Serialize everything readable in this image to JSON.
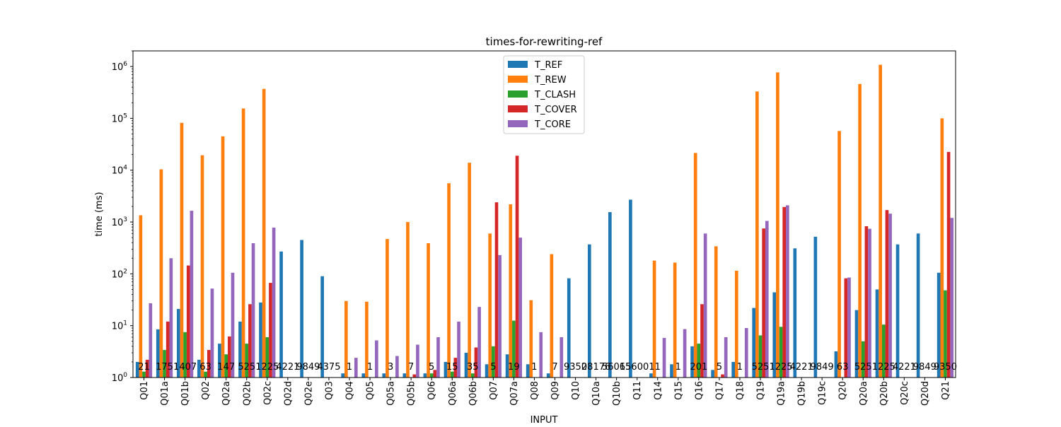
{
  "chart_data": {
    "type": "bar",
    "title": "times-for-rewriting-ref",
    "xlabel": "INPUT",
    "ylabel": "time (ms)",
    "yscale": "log",
    "ylim": [
      1,
      2000000
    ],
    "ytick_labels": [
      {
        "base": "10",
        "exp": "0",
        "value": 1
      },
      {
        "base": "10",
        "exp": "1",
        "value": 10
      },
      {
        "base": "10",
        "exp": "2",
        "value": 100
      },
      {
        "base": "10",
        "exp": "3",
        "value": 1000
      },
      {
        "base": "10",
        "exp": "4",
        "value": 10000
      },
      {
        "base": "10",
        "exp": "5",
        "value": 100000
      },
      {
        "base": "10",
        "exp": "6",
        "value": 1000000
      }
    ],
    "legend_position": "top-center",
    "categories": [
      "Q01",
      "Q01a",
      "Q01b",
      "Q02",
      "Q02a",
      "Q02b",
      "Q02c",
      "Q02d",
      "Q02e",
      "Q03",
      "Q04",
      "Q05",
      "Q05a",
      "Q05b",
      "Q06",
      "Q06a",
      "Q06b",
      "Q07",
      "Q07a",
      "Q08",
      "Q09",
      "Q10",
      "Q10a",
      "Q10b",
      "Q11",
      "Q14",
      "Q15",
      "Q16",
      "Q17",
      "Q18",
      "Q19",
      "Q19a",
      "Q19b",
      "Q19c",
      "Q20",
      "Q20a",
      "Q20b",
      "Q20c",
      "Q20d",
      "Q21"
    ],
    "series": [
      {
        "name": "T_REF",
        "color": "#1f77b4",
        "values": [
          2,
          8.5,
          21,
          2.2,
          4.5,
          12,
          28,
          270,
          450,
          90,
          1.2,
          1.2,
          1.2,
          1.2,
          1.2,
          2,
          3,
          1.8,
          2.8,
          1.8,
          1.2,
          82,
          370,
          1550,
          2700,
          1.2,
          1.8,
          4,
          1.4,
          2,
          22,
          44,
          310,
          520,
          3.2,
          20,
          50,
          370,
          600,
          105
        ]
      },
      {
        "name": "T_REW",
        "color": "#ff7f0e",
        "values": [
          1350,
          10400,
          82000,
          19400,
          45000,
          155000,
          370000,
          null,
          null,
          null,
          30,
          29,
          470,
          1000,
          390,
          5600,
          13900,
          600,
          2200,
          31,
          240,
          null,
          null,
          null,
          null,
          180,
          165,
          21500,
          340,
          115,
          330000,
          770000,
          null,
          null,
          57000,
          460000,
          1080000,
          null,
          null,
          100000
        ]
      },
      {
        "name": "T_CLASH",
        "color": "#2ca02c",
        "values": [
          1.3,
          3.4,
          7.5,
          1.3,
          2.8,
          4.5,
          6,
          null,
          null,
          null,
          null,
          null,
          null,
          null,
          1.2,
          1.3,
          1.2,
          4,
          12.5,
          null,
          null,
          null,
          null,
          null,
          null,
          null,
          null,
          4.5,
          null,
          null,
          6.5,
          9.5,
          null,
          null,
          null,
          5,
          10.5,
          null,
          null,
          48
        ]
      },
      {
        "name": "T_COVER",
        "color": "#d62728",
        "values": [
          2.2,
          12,
          145,
          3.4,
          6.2,
          26,
          67,
          null,
          null,
          null,
          null,
          null,
          null,
          1.15,
          1.4,
          2.4,
          3.8,
          2400,
          19000,
          null,
          null,
          null,
          null,
          null,
          null,
          null,
          null,
          26,
          1.15,
          null,
          750,
          1950,
          null,
          null,
          82,
          830,
          1700,
          null,
          null,
          22500
        ]
      },
      {
        "name": "T_CORE",
        "color": "#9467bd",
        "values": [
          27,
          200,
          1650,
          52,
          105,
          390,
          780,
          null,
          null,
          null,
          2.4,
          5.2,
          2.6,
          4.3,
          6,
          12,
          23,
          230,
          500,
          7.5,
          6,
          null,
          null,
          null,
          null,
          5.8,
          8.6,
          600,
          6,
          9,
          1050,
          2100,
          null,
          null,
          85,
          740,
          1450,
          null,
          null,
          1200
        ]
      }
    ],
    "annotations": [
      "21",
      "175",
      "1407",
      "63",
      "147",
      "525",
      "1225",
      "4221",
      "9849",
      "4375",
      "1",
      "1",
      "3",
      "7",
      "5",
      "15",
      "35",
      "5",
      "19",
      "1",
      "7",
      "9350",
      "28176",
      "56065",
      "156001",
      "1",
      "1",
      "201",
      "5",
      "1",
      "525",
      "1225",
      "4221",
      "9849",
      "63",
      "525",
      "1225",
      "4221",
      "9849",
      "9350"
    ]
  }
}
